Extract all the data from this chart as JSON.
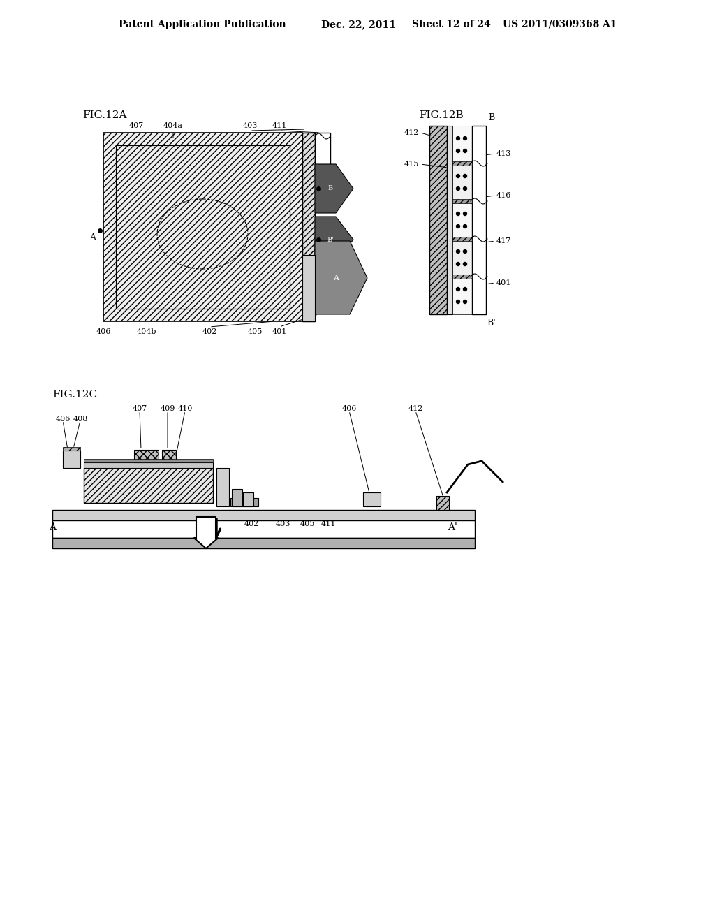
{
  "bg_color": "#ffffff",
  "header_text": "Patent Application Publication",
  "header_date": "Dec. 22, 2011",
  "header_sheet": "Sheet 12 of 24",
  "header_patent": "US 2011/0309368 A1",
  "fig12a_label": "FIG.12A",
  "fig12b_label": "FIG.12B",
  "fig12c_label": "FIG.12C"
}
